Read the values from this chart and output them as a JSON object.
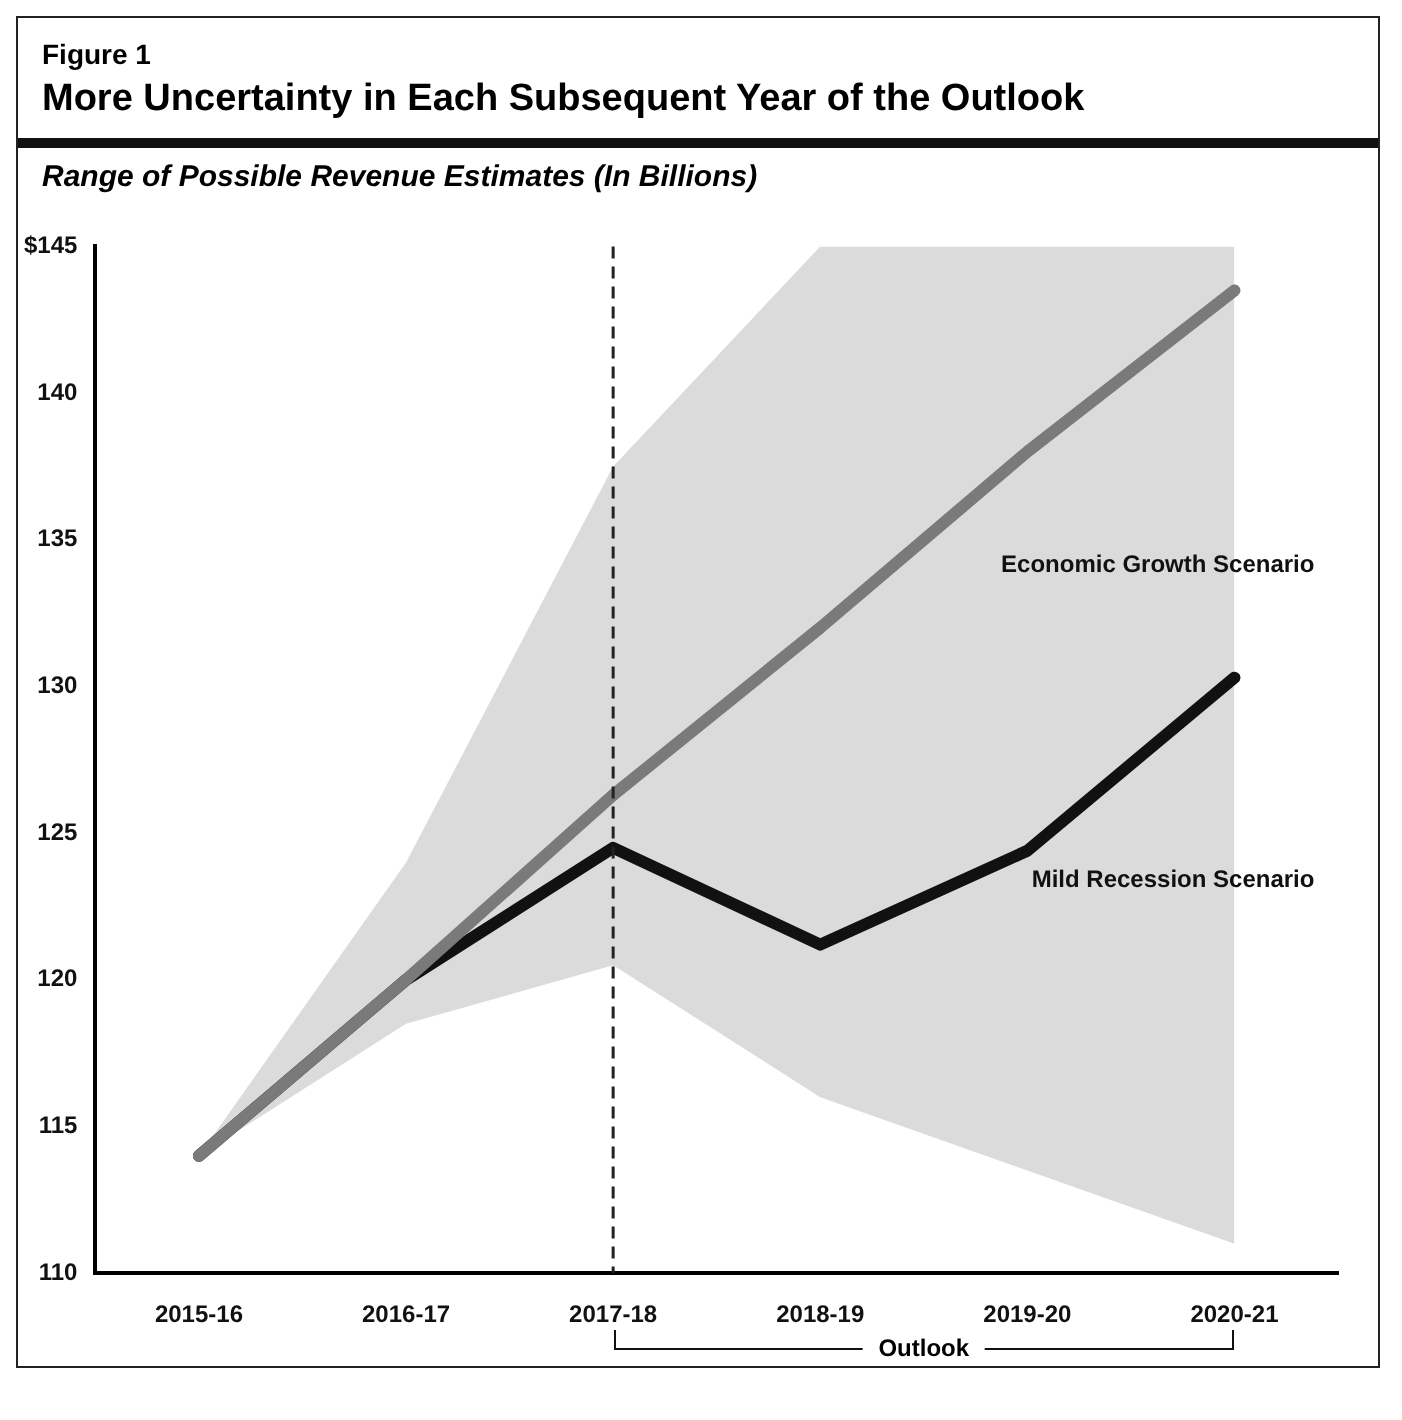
{
  "chart_data": {
    "type": "line",
    "title": "More Uncertainty in Each Subsequent Year of the Outlook",
    "subtitle": "Range of Possible Revenue Estimates (In Billions)",
    "annotations": [
      "Figure 1",
      "Outlook"
    ],
    "categories": [
      "2015-16",
      "2016-17",
      "2017-18",
      "2018-19",
      "2019-20",
      "2020-21"
    ],
    "series": [
      {
        "name": "Economic Growth Scenario",
        "color": "#7a7a7a",
        "values": [
          114,
          120,
          126.3,
          132,
          138,
          143.5
        ],
        "lower": [
          114,
          118.5,
          120.5,
          116,
          113.5,
          111
        ],
        "upper": [
          114,
          124,
          137.5,
          145,
          145,
          145
        ]
      },
      {
        "name": "Mild Recession Scenario",
        "color": "#111111",
        "values": [
          114,
          120,
          124.5,
          121.2,
          124.4,
          130.3
        ]
      }
    ],
    "ylim": [
      110,
      145
    ],
    "yticks": [
      110,
      115,
      120,
      125,
      130,
      135,
      140,
      {
        "value": 145,
        "label": "$145"
      }
    ],
    "ref_lines": [
      {
        "axis": "x",
        "value": "2017-18",
        "line_style": "dashed",
        "color": "#222222"
      }
    ],
    "grid": false,
    "legend": false,
    "marker": "none",
    "line_style": "solid"
  }
}
